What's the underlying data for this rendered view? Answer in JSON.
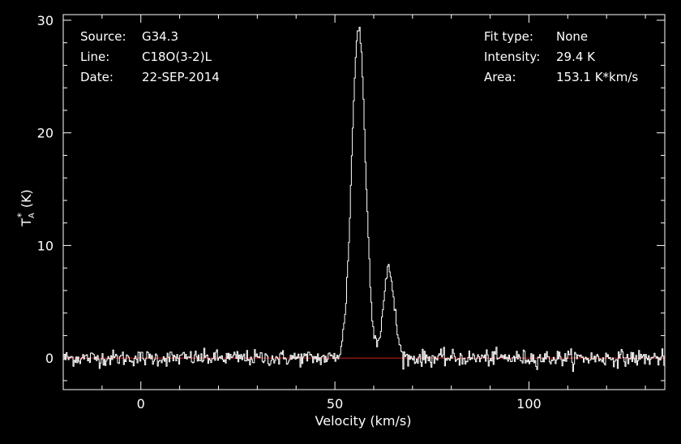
{
  "chart_data": {
    "type": "line",
    "xlabel": "Velocity (km/s)",
    "ylabel": "T",
    "ylabel_sub": "A",
    "ylabel_sup": "*",
    "ylabel_unit": "(K)",
    "xlim": [
      -20,
      135
    ],
    "ylim": [
      -2.8,
      30.5
    ],
    "xticks": [
      0,
      50,
      100
    ],
    "yticks": [
      0,
      10,
      20,
      30
    ],
    "xtick_labels": [
      "0",
      "50",
      "100"
    ],
    "ytick_labels": [
      "0",
      "10",
      "20",
      "30"
    ],
    "grid": false,
    "legend": "none",
    "series": [
      {
        "color": "#ffffff",
        "components": [
          {
            "shape": "gaussian",
            "center": 56.0,
            "peak": 29.4,
            "sigma": 1.75
          },
          {
            "shape": "gaussian",
            "center": 63.8,
            "peak": 7.8,
            "sigma": 1.4
          }
        ],
        "noise_rms": 0.35,
        "channel_width": 0.25
      }
    ],
    "baseline": {
      "value": 0,
      "color": "#cc2020"
    },
    "annotations_left": [
      {
        "label": "Source:",
        "value": "G34.3"
      },
      {
        "label": "Line:",
        "value": "C18O(3-2)L"
      },
      {
        "label": "Date:",
        "value": "22-SEP-2014"
      }
    ],
    "annotations_right": [
      {
        "label": "Fit type:",
        "value": "None"
      },
      {
        "label": "Intensity:",
        "value": "29.4 K"
      },
      {
        "label": "Area:",
        "value": "153.1 K*km/s"
      }
    ]
  },
  "colors": {
    "background": "#000000",
    "foreground": "#ffffff",
    "baseline": "#cc2020"
  }
}
